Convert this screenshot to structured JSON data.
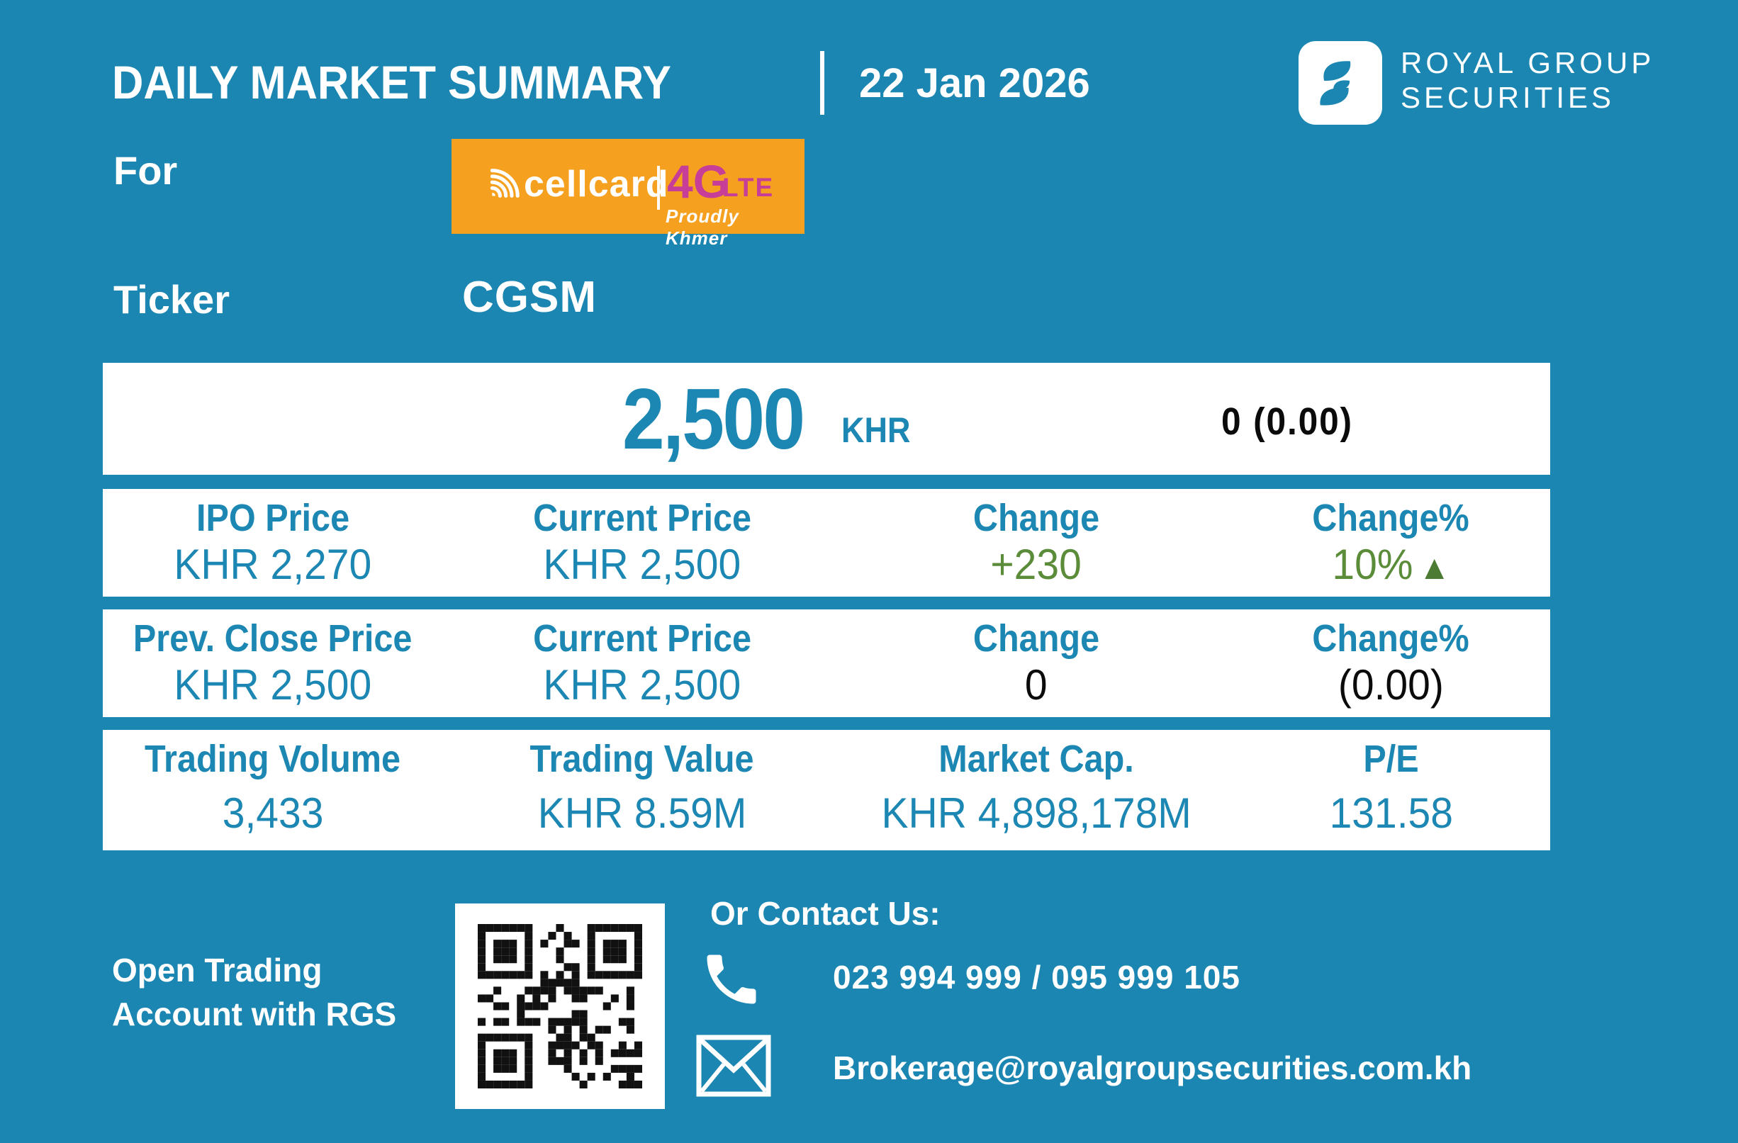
{
  "header": {
    "title": "DAILY MARKET SUMMARY",
    "date": "22 Jan 2026",
    "brand_line1": "ROYAL GROUP",
    "brand_line2": "SECURITIES"
  },
  "company": {
    "for_label": "For",
    "ticker_label": "Ticker",
    "ticker": "CGSM",
    "logo": {
      "brand": "cellcard",
      "tech": "4G",
      "tech_suffix": "LTE",
      "tagline": "Proudly Khmer"
    }
  },
  "price_panel": {
    "price": "2,500",
    "currency": "KHR",
    "change_summary": "0 (0.00)"
  },
  "rows": [
    {
      "headers": [
        "IPO Price",
        "Current Price",
        "Change",
        "Change%"
      ],
      "values": [
        "KHR 2,270",
        "KHR 2,500",
        "+230",
        "10%"
      ]
    },
    {
      "headers": [
        "Prev. Close Price",
        "Current Price",
        "Change",
        "Change%"
      ],
      "values": [
        "KHR 2,500",
        "KHR 2,500",
        "0",
        "(0.00)"
      ]
    },
    {
      "headers": [
        "Trading Volume",
        "Trading Value",
        "Market Cap.",
        "P/E"
      ],
      "values": [
        "3,433",
        "KHR 8.59M",
        "KHR 4,898,178M",
        "131.58"
      ]
    }
  ],
  "glyphs": {
    "up_triangle": "▲"
  },
  "footer": {
    "cta_line1": "Open Trading",
    "cta_line2": "Account with RGS",
    "contact_heading": "Or Contact Us:",
    "phone": "023 994 999 / 095 999 105",
    "email": "Brokerage@royalgroupsecurities.com.kh"
  },
  "colors": {
    "background": "#1B86B1",
    "teal_text": "#1D87B3",
    "green": "#5B8C3A",
    "orange": "#F5A01E",
    "magenta": "#C73E98",
    "black": "#0B0B0B"
  }
}
